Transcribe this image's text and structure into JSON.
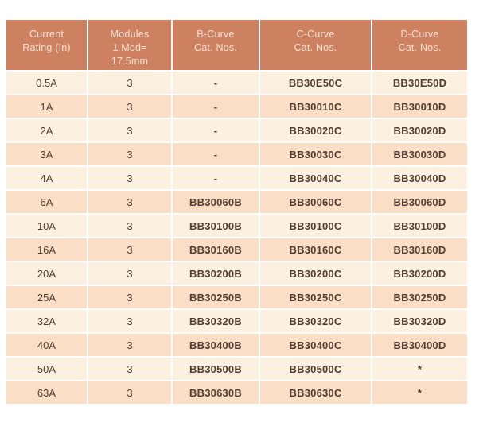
{
  "colors": {
    "header_bg": "#CE8161",
    "header_text": "#F6E3D5",
    "row_light": "#FCF1E1",
    "row_dark": "#FADFC6",
    "body_text": "#503C30",
    "grid": "#FFFFFF",
    "page_bg": "#FFFFFF"
  },
  "table": {
    "columns": [
      {
        "id": "current_rating",
        "label": "Current\nRating (In)"
      },
      {
        "id": "modules",
        "label": "Modules\n1 Mod=\n17.5mm"
      },
      {
        "id": "b_curve",
        "label": "B-Curve\nCat. Nos."
      },
      {
        "id": "c_curve",
        "label": "C-Curve\nCat. Nos."
      },
      {
        "id": "d_curve",
        "label": "D-Curve\nCat. Nos."
      }
    ],
    "rows": [
      [
        "0.5A",
        "3",
        "-",
        "BB30E50C",
        "BB30E50D"
      ],
      [
        "1A",
        "3",
        "-",
        "BB30010C",
        "BB30010D"
      ],
      [
        "2A",
        "3",
        "-",
        "BB30020C",
        "BB30020D"
      ],
      [
        "3A",
        "3",
        "-",
        "BB30030C",
        "BB30030D"
      ],
      [
        "4A",
        "3",
        "-",
        "BB30040C",
        "BB30040D"
      ],
      [
        "6A",
        "3",
        "BB30060B",
        "BB30060C",
        "BB30060D"
      ],
      [
        "10A",
        "3",
        "BB30100B",
        "BB30100C",
        "BB30100D"
      ],
      [
        "16A",
        "3",
        "BB30160B",
        "BB30160C",
        "BB30160D"
      ],
      [
        "20A",
        "3",
        "BB30200B",
        "BB30200C",
        "BB30200D"
      ],
      [
        "25A",
        "3",
        "BB30250B",
        "BB30250C",
        "BB30250D"
      ],
      [
        "32A",
        "3",
        "BB30320B",
        "BB30320C",
        "BB30320D"
      ],
      [
        "40A",
        "3",
        "BB30400B",
        "BB30400C",
        "BB30400D"
      ],
      [
        "50A",
        "3",
        "BB30500B",
        "BB30500C",
        "*"
      ],
      [
        "63A",
        "3",
        "BB30630B",
        "BB30630C",
        "*"
      ]
    ]
  }
}
